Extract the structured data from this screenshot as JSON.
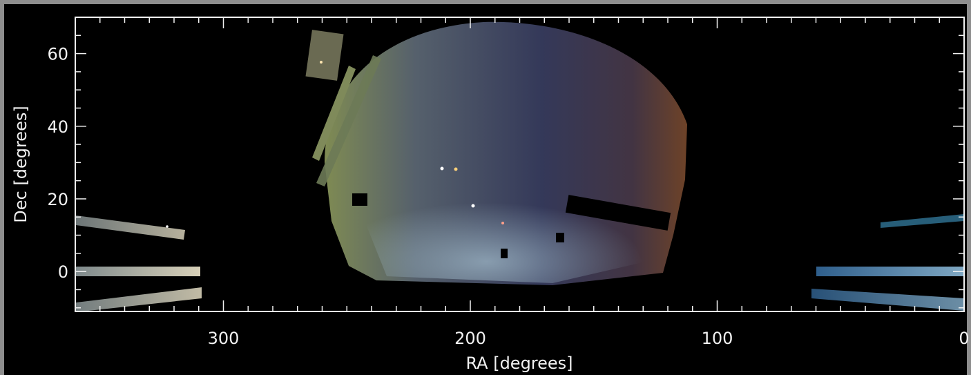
{
  "chart_data": {
    "type": "heatmap",
    "title": "",
    "xlabel": "RA [degrees]",
    "ylabel": "Dec [degrees]",
    "xlim": [
      360,
      0
    ],
    "ylim": [
      -11,
      70
    ],
    "x_reversed": true,
    "x_ticks": [
      {
        "value": 300,
        "label": "300"
      },
      {
        "value": 200,
        "label": "200"
      },
      {
        "value": 100,
        "label": "100"
      },
      {
        "value": 0,
        "label": "0"
      }
    ],
    "y_ticks": [
      {
        "value": 0,
        "label": "0"
      },
      {
        "value": 20,
        "label": "20"
      },
      {
        "value": 40,
        "label": "40"
      },
      {
        "value": 60,
        "label": "60"
      }
    ],
    "x_minor_step": 10,
    "y_minor_step": 5,
    "grid": false,
    "colors": {
      "background": "#000000",
      "frame": "#8e8e8e",
      "axes": "#f2f2f2"
    }
  }
}
